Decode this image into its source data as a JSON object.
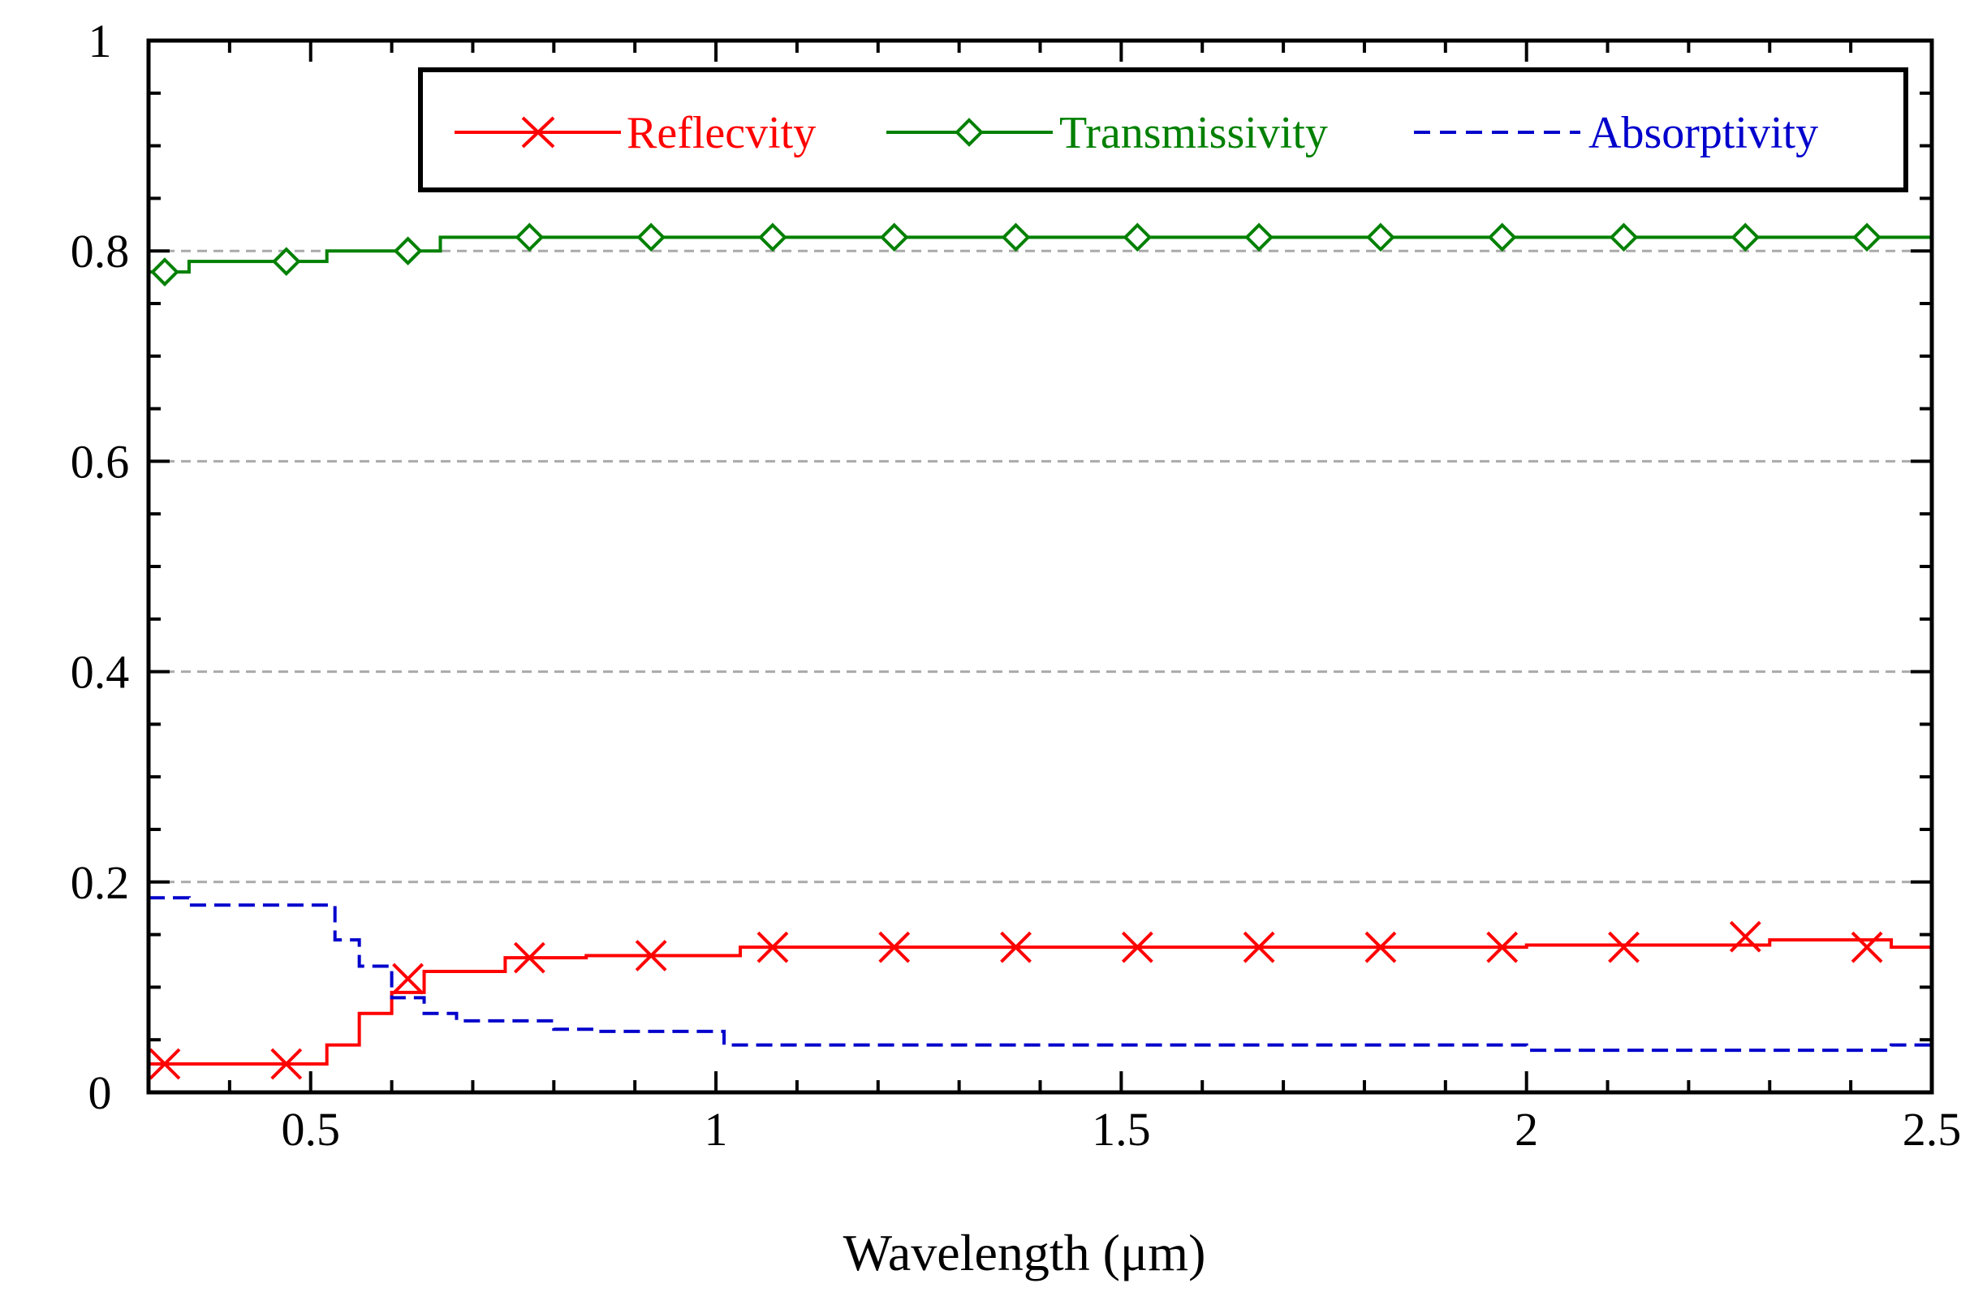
{
  "chart_data": {
    "type": "line",
    "title": "",
    "xlabel": "Wavelength (μm)",
    "ylabel": "",
    "xlim": [
      0.3,
      2.5
    ],
    "ylim": [
      0,
      1
    ],
    "x_ticks": [
      0.5,
      1,
      1.5,
      2,
      2.5
    ],
    "x_tick_labels": [
      "0.5",
      "1",
      "1.5",
      "2",
      "2.5"
    ],
    "y_ticks": [
      0,
      0.2,
      0.4,
      0.6,
      0.8,
      1
    ],
    "y_tick_labels": [
      "0",
      "0.2",
      "0.4",
      "0.6",
      "0.8",
      "1"
    ],
    "grid": "horizontal dashed",
    "legend_position": "top-right",
    "series": [
      {
        "name": "Reflecvity",
        "color": "#ff0000",
        "style": "solid",
        "marker": "x",
        "x": [
          0.3,
          0.5,
          0.52,
          0.56,
          0.6,
          0.64,
          0.7,
          0.74,
          0.8,
          0.84,
          0.9,
          1.0,
          1.03,
          1.5,
          1.98,
          2.0,
          2.2,
          2.3,
          2.45,
          2.5
        ],
        "y": [
          0.027,
          0.027,
          0.045,
          0.075,
          0.095,
          0.115,
          0.115,
          0.128,
          0.128,
          0.13,
          0.13,
          0.13,
          0.138,
          0.138,
          0.138,
          0.14,
          0.14,
          0.145,
          0.138,
          0.142
        ],
        "marker_x": [
          0.32,
          0.47,
          0.62,
          0.77,
          0.92,
          1.07,
          1.22,
          1.37,
          1.52,
          1.67,
          1.82,
          1.97,
          2.12,
          2.27,
          2.42
        ],
        "marker_y": [
          0.027,
          0.027,
          0.108,
          0.128,
          0.13,
          0.138,
          0.138,
          0.138,
          0.138,
          0.138,
          0.138,
          0.138,
          0.138,
          0.148,
          0.138
        ]
      },
      {
        "name": "Transmissivity",
        "color": "#008000",
        "style": "solid",
        "marker": "diamond",
        "x": [
          0.3,
          0.33,
          0.35,
          0.5,
          0.52,
          0.65,
          0.66,
          0.8,
          1.0,
          1.5,
          2.0,
          2.5
        ],
        "y": [
          0.78,
          0.78,
          0.79,
          0.79,
          0.8,
          0.8,
          0.813,
          0.813,
          0.813,
          0.813,
          0.813,
          0.813
        ],
        "marker_x": [
          0.32,
          0.47,
          0.62,
          0.77,
          0.92,
          1.07,
          1.22,
          1.37,
          1.52,
          1.67,
          1.82,
          1.97,
          2.12,
          2.27,
          2.42
        ],
        "marker_y": [
          0.78,
          0.79,
          0.8,
          0.813,
          0.813,
          0.813,
          0.813,
          0.813,
          0.813,
          0.813,
          0.813,
          0.813,
          0.813,
          0.813,
          0.813
        ]
      },
      {
        "name": "Absorptivity",
        "color": "#0000cc",
        "style": "dashed",
        "marker": "none",
        "x": [
          0.3,
          0.35,
          0.5,
          0.53,
          0.56,
          0.6,
          0.64,
          0.68,
          0.75,
          0.8,
          0.85,
          1.0,
          1.01,
          1.5,
          2.0,
          2.3,
          2.45,
          2.5
        ],
        "y": [
          0.185,
          0.178,
          0.178,
          0.145,
          0.12,
          0.09,
          0.075,
          0.068,
          0.068,
          0.06,
          0.058,
          0.058,
          0.045,
          0.045,
          0.04,
          0.04,
          0.045,
          0.04
        ]
      }
    ]
  }
}
